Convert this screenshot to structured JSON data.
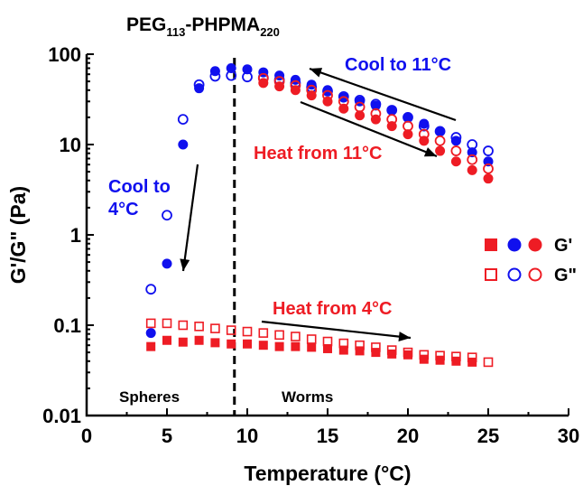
{
  "chart_data": {
    "type": "scatter",
    "title_main": "PEG",
    "title_sub1": "113",
    "title_mid": "-PHPMA",
    "title_sub2": "220",
    "xlabel": "Temperature (°C)",
    "ylabel": "G'/G\" (Pa)",
    "xlim": [
      0,
      30
    ],
    "ylim": [
      0.01,
      100
    ],
    "y_scale": "log",
    "x_ticks": [
      0,
      5,
      10,
      15,
      20,
      25,
      30
    ],
    "x_tick_labels": [
      "0",
      "5",
      "10",
      "15",
      "20",
      "25",
      "30"
    ],
    "y_ticks": [
      0.01,
      0.1,
      1,
      10,
      100
    ],
    "y_tick_labels": [
      "0.01",
      "0.1",
      "1",
      "10",
      "100"
    ],
    "transition_line_x": 9.2,
    "regions": [
      "Spheres",
      "Worms"
    ],
    "annotations": [
      "Cool to 11°C",
      "Heat from 11°C",
      "Cool to",
      "4°C",
      "Heat from 4°C"
    ],
    "legend": {
      "labels": [
        "G'",
        "G\""
      ],
      "placement": "right"
    },
    "colors": {
      "blue": "#1010ee",
      "red": "#ee1c24"
    },
    "series": [
      {
        "marker": "filled-circle",
        "color": "blue",
        "x": [
          4,
          5,
          6,
          7,
          8,
          9,
          10,
          11,
          12,
          13,
          14,
          15,
          16,
          17,
          18,
          19,
          20,
          21,
          22,
          23,
          24,
          25
        ],
        "values": [
          0.082,
          0.48,
          10,
          42,
          65,
          70,
          68,
          63,
          58,
          52,
          46,
          40,
          33,
          30,
          27,
          24,
          20,
          17,
          14,
          11,
          8.2,
          6.5
        ]
      },
      {
        "marker": "open-circle",
        "color": "blue",
        "x": [
          4,
          5,
          6,
          7,
          8,
          9,
          10,
          11,
          12,
          13,
          14,
          15,
          16,
          17,
          18,
          19,
          20,
          21,
          22,
          23,
          24,
          25
        ],
        "values": [
          0.25,
          1.65,
          19,
          46,
          57,
          58,
          56,
          55,
          52,
          48,
          43,
          39,
          34,
          31,
          28,
          24,
          20,
          16,
          14,
          12,
          10,
          8.5
        ]
      },
      {
        "marker": "filled-circle",
        "color": "red",
        "x": [
          11,
          12,
          13,
          14,
          15,
          16,
          17,
          18,
          19,
          20,
          21,
          22,
          23,
          24,
          25
        ],
        "values": [
          48,
          44,
          40,
          35,
          30,
          25,
          21,
          19,
          16,
          13,
          11,
          8.5,
          6.5,
          5.2,
          4.2
        ]
      },
      {
        "marker": "open-circle",
        "color": "red",
        "x": [
          11,
          12,
          13,
          14,
          15,
          16,
          17,
          18,
          19,
          20,
          21,
          22,
          23,
          24,
          25
        ],
        "values": [
          54,
          50,
          45,
          40,
          35,
          30,
          26,
          22,
          19,
          16,
          13,
          11,
          8.5,
          6.8,
          5.4
        ]
      },
      {
        "marker": "filled-square",
        "color": "red",
        "x": [
          4,
          5,
          6,
          7,
          8,
          9,
          10,
          11,
          12,
          13,
          14,
          15,
          16,
          17,
          18,
          19,
          20,
          21,
          22,
          23,
          24
        ],
        "values": [
          0.058,
          0.068,
          0.065,
          0.068,
          0.064,
          0.062,
          0.062,
          0.06,
          0.058,
          0.058,
          0.057,
          0.055,
          0.053,
          0.052,
          0.05,
          0.048,
          0.047,
          0.042,
          0.041,
          0.04,
          0.039
        ]
      },
      {
        "marker": "open-square",
        "color": "red",
        "x": [
          4,
          5,
          6,
          7,
          8,
          9,
          10,
          11,
          12,
          13,
          14,
          15,
          16,
          17,
          18,
          19,
          20,
          21,
          22,
          23,
          24,
          25
        ],
        "values": [
          0.105,
          0.105,
          0.1,
          0.097,
          0.092,
          0.088,
          0.085,
          0.082,
          0.078,
          0.075,
          0.07,
          0.066,
          0.063,
          0.06,
          0.057,
          0.053,
          0.05,
          0.047,
          0.046,
          0.045,
          0.044,
          0.039
        ]
      }
    ]
  }
}
